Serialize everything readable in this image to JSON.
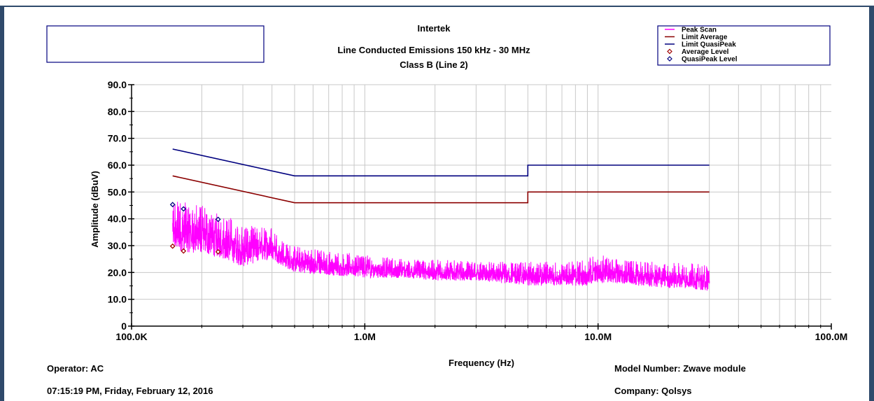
{
  "header": {
    "title_line1": "Intertek",
    "title_line2": "Line Conducted Emissions 150 kHz - 30 MHz",
    "title_line3": "Class B (Line 2)"
  },
  "footer": {
    "operator": "Operator: AC",
    "timestamp": "07:15:19 PM, Friday, February 12, 2016",
    "model_number": "Model Number: Zwave module",
    "company": "Company: Qolsys"
  },
  "colors": {
    "peak_scan": "#ff00ff",
    "limit_average": "#8b0000",
    "limit_quasipeak": "#00007f",
    "average_level": "#a00000",
    "quasipeak_level": "#00007f",
    "grid": "#c8c8c8"
  },
  "chart_data": {
    "type": "line",
    "xscale": "log",
    "xlabel": "Frequency (Hz)",
    "ylabel": "Amplitude (dBuV)",
    "xlim": [
      100000,
      100000000
    ],
    "ylim": [
      0,
      90
    ],
    "x_tick_labels": [
      "100.0K",
      "1.0M",
      "10.0M",
      "100.0M"
    ],
    "y_tick_labels": [
      "0",
      "10.0",
      "20.0",
      "30.0",
      "40.0",
      "50.0",
      "60.0",
      "70.0",
      "80.0",
      "90.0"
    ],
    "grid": true,
    "legend_position": "top-right",
    "legend": [
      "Peak Scan",
      "Limit Average",
      "Limit QuasiPeak",
      "Average Level",
      "QuasiPeak Level"
    ],
    "series": [
      {
        "name": "Limit QuasiPeak",
        "kind": "line",
        "x": [
          150000,
          500000,
          500000,
          5000000,
          5000000,
          30000000
        ],
        "y": [
          66,
          56,
          56,
          56,
          60,
          60
        ]
      },
      {
        "name": "Limit Average",
        "kind": "line",
        "x": [
          150000,
          500000,
          500000,
          5000000,
          5000000,
          30000000
        ],
        "y": [
          56,
          46,
          46,
          46,
          50,
          50
        ]
      },
      {
        "name": "Peak Scan",
        "kind": "noise-band",
        "x": [
          150000,
          200000,
          250000,
          300000,
          350000,
          400000,
          450000,
          500000,
          700000,
          1000000,
          1500000,
          2000000,
          3000000,
          5000000,
          7000000,
          9000000,
          10000000,
          12000000,
          15000000,
          20000000,
          25000000,
          30000000
        ],
        "upper": [
          47,
          45,
          42,
          38,
          37,
          37,
          31,
          30,
          28,
          27,
          25,
          25,
          24,
          24,
          24,
          25,
          28,
          25,
          24,
          24,
          24,
          23
        ],
        "lower": [
          28,
          27,
          25,
          22,
          24,
          25,
          22,
          20,
          19,
          18,
          18,
          17,
          17,
          15,
          15,
          15,
          16,
          16,
          15,
          14,
          14,
          13
        ]
      },
      {
        "name": "Average Level",
        "kind": "marker",
        "marker": "diamond",
        "x": [
          150000,
          167000,
          235000
        ],
        "y": [
          29.8,
          28,
          27.7
        ]
      },
      {
        "name": "QuasiPeak Level",
        "kind": "marker",
        "marker": "diamond",
        "x": [
          150000,
          167000,
          235000
        ],
        "y": [
          45.3,
          43.7,
          39.8
        ]
      }
    ]
  }
}
